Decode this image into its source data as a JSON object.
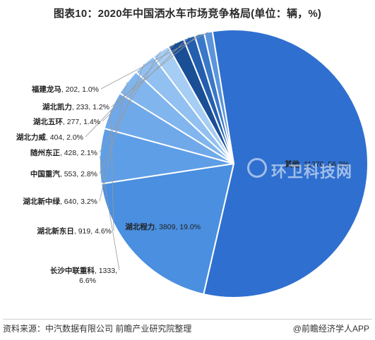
{
  "title": "图表10：2020年中国洒水车市场竞争格局(单位：辆，%)",
  "source": "资料来源：中汽数据有限公司 前瞻产业研究院整理",
  "brand": "@前瞻经济学人APP",
  "watermark": "环卫科技网",
  "chart_data": {
    "type": "pie",
    "title": "图表10：2020年中国洒水车市场竞争格局(单位：辆，%)",
    "unit": "辆，%",
    "slices": [
      {
        "name": "其他",
        "value": 11270,
        "percent": "56.2%",
        "color": "#2f6fcf"
      },
      {
        "name": "湖北程力",
        "value": 3809,
        "percent": "19.0%",
        "color": "#4a8fe0"
      },
      {
        "name": "长沙中联重科",
        "value": 1333,
        "percent": "6.6%",
        "color": "#5e9ee6"
      },
      {
        "name": "湖北新东日",
        "value": 919,
        "percent": "4.6%",
        "color": "#6fa9ea"
      },
      {
        "name": "湖北新中绿",
        "value": 640,
        "percent": "3.2%",
        "color": "#81b5ee"
      },
      {
        "name": "中国重汽",
        "value": 553,
        "percent": "2.8%",
        "color": "#91c0f1"
      },
      {
        "name": "随州东正",
        "value": 428,
        "percent": "2.1%",
        "color": "#a6cdf4"
      },
      {
        "name": "湖北力威",
        "value": 404,
        "percent": "2.0%",
        "color": "#1a4f96"
      },
      {
        "name": "湖北五环",
        "value": 277,
        "percent": "1.4%",
        "color": "#245fae"
      },
      {
        "name": "湖北凯力",
        "value": 233,
        "percent": "1.2%",
        "color": "#3a78c8"
      },
      {
        "name": "福建龙马",
        "value": 202,
        "percent": "1.0%",
        "color": "#5b95dc"
      }
    ]
  }
}
